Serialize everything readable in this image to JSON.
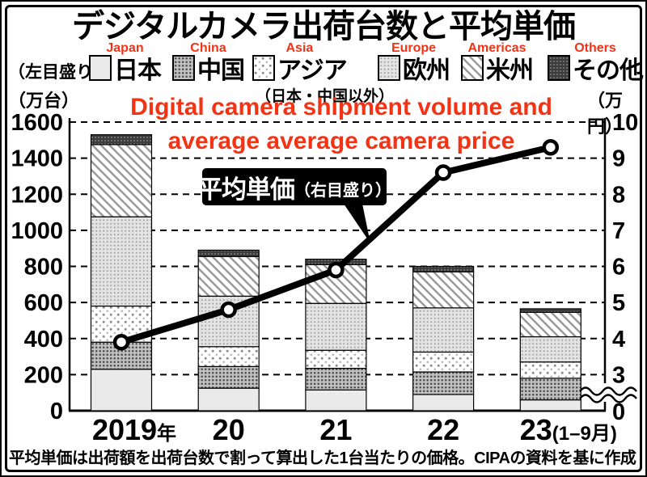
{
  "title": "デジタルカメラ出荷台数と平均単価",
  "overlay": {
    "line1": "Digital camera shipment volume and",
    "line2": "average average camera price",
    "legend_en": [
      "Japan",
      "China",
      "Asia",
      "Europe",
      "Americas",
      "Others"
    ],
    "color": "#f43214"
  },
  "scale_notes": {
    "left_scale_note": "（左目盛り）",
    "left_unit": "（万台）",
    "right_unit": "（万円）",
    "asia_note": "（日本・中国以外）"
  },
  "legend": [
    {
      "label": "日本",
      "pattern": "japan"
    },
    {
      "label": "中国",
      "pattern": "china"
    },
    {
      "label": "アジア",
      "pattern": "asia"
    },
    {
      "label": "欧州",
      "pattern": "europe"
    },
    {
      "label": "米州",
      "pattern": "americas"
    },
    {
      "label": "その他",
      "pattern": "others"
    }
  ],
  "annotation": {
    "main": "平均単価",
    "sub": "（右目盛り）"
  },
  "footnote": "平均単価は出荷額を出荷台数で割って算出した1台当たりの価格。CIPAの資料を基に作成",
  "chart_data": {
    "type": "bar",
    "subtype": "stacked-bars-with-line-overlay",
    "title": "デジタルカメラ出荷台数と平均単価",
    "grid": "dashed horizontal, shared by both axes",
    "legend_position": "top",
    "categories": [
      {
        "main": "2019",
        "suffix": "年"
      },
      {
        "main": "20",
        "suffix": ""
      },
      {
        "main": "21",
        "suffix": ""
      },
      {
        "main": "22",
        "suffix": ""
      },
      {
        "main": "23",
        "suffix": "(1–9月)"
      }
    ],
    "series": [
      {
        "name": "日本",
        "pattern": "japan",
        "values": [
          230,
          125,
          115,
          90,
          60
        ]
      },
      {
        "name": "中国",
        "pattern": "china",
        "values": [
          150,
          120,
          120,
          125,
          120
        ]
      },
      {
        "name": "アジア(日本・中国以外)",
        "pattern": "asia",
        "values": [
          200,
          110,
          100,
          110,
          90
        ]
      },
      {
        "name": "欧州",
        "pattern": "europe",
        "values": [
          495,
          280,
          260,
          245,
          140
        ]
      },
      {
        "name": "米州",
        "pattern": "americas",
        "values": [
          400,
          220,
          215,
          200,
          135
        ]
      },
      {
        "name": "その他",
        "pattern": "others",
        "values": [
          55,
          35,
          30,
          30,
          20
        ]
      }
    ],
    "bar_totals": [
      1530,
      890,
      840,
      800,
      565
    ],
    "line_series": {
      "name": "平均単価",
      "axis": "right",
      "unit": "万円",
      "values": [
        3.9,
        4.8,
        5.9,
        8.6,
        9.3
      ]
    },
    "left_axis": {
      "label": "万台",
      "min": 0,
      "max": 1600,
      "step": 200
    },
    "right_axis": {
      "label": "万円",
      "min": 3,
      "max": 10,
      "ticks": [
        10,
        9,
        8,
        7,
        6,
        5,
        4,
        3,
        0
      ],
      "axis_break": "wavy break between 3 and 0"
    }
  }
}
